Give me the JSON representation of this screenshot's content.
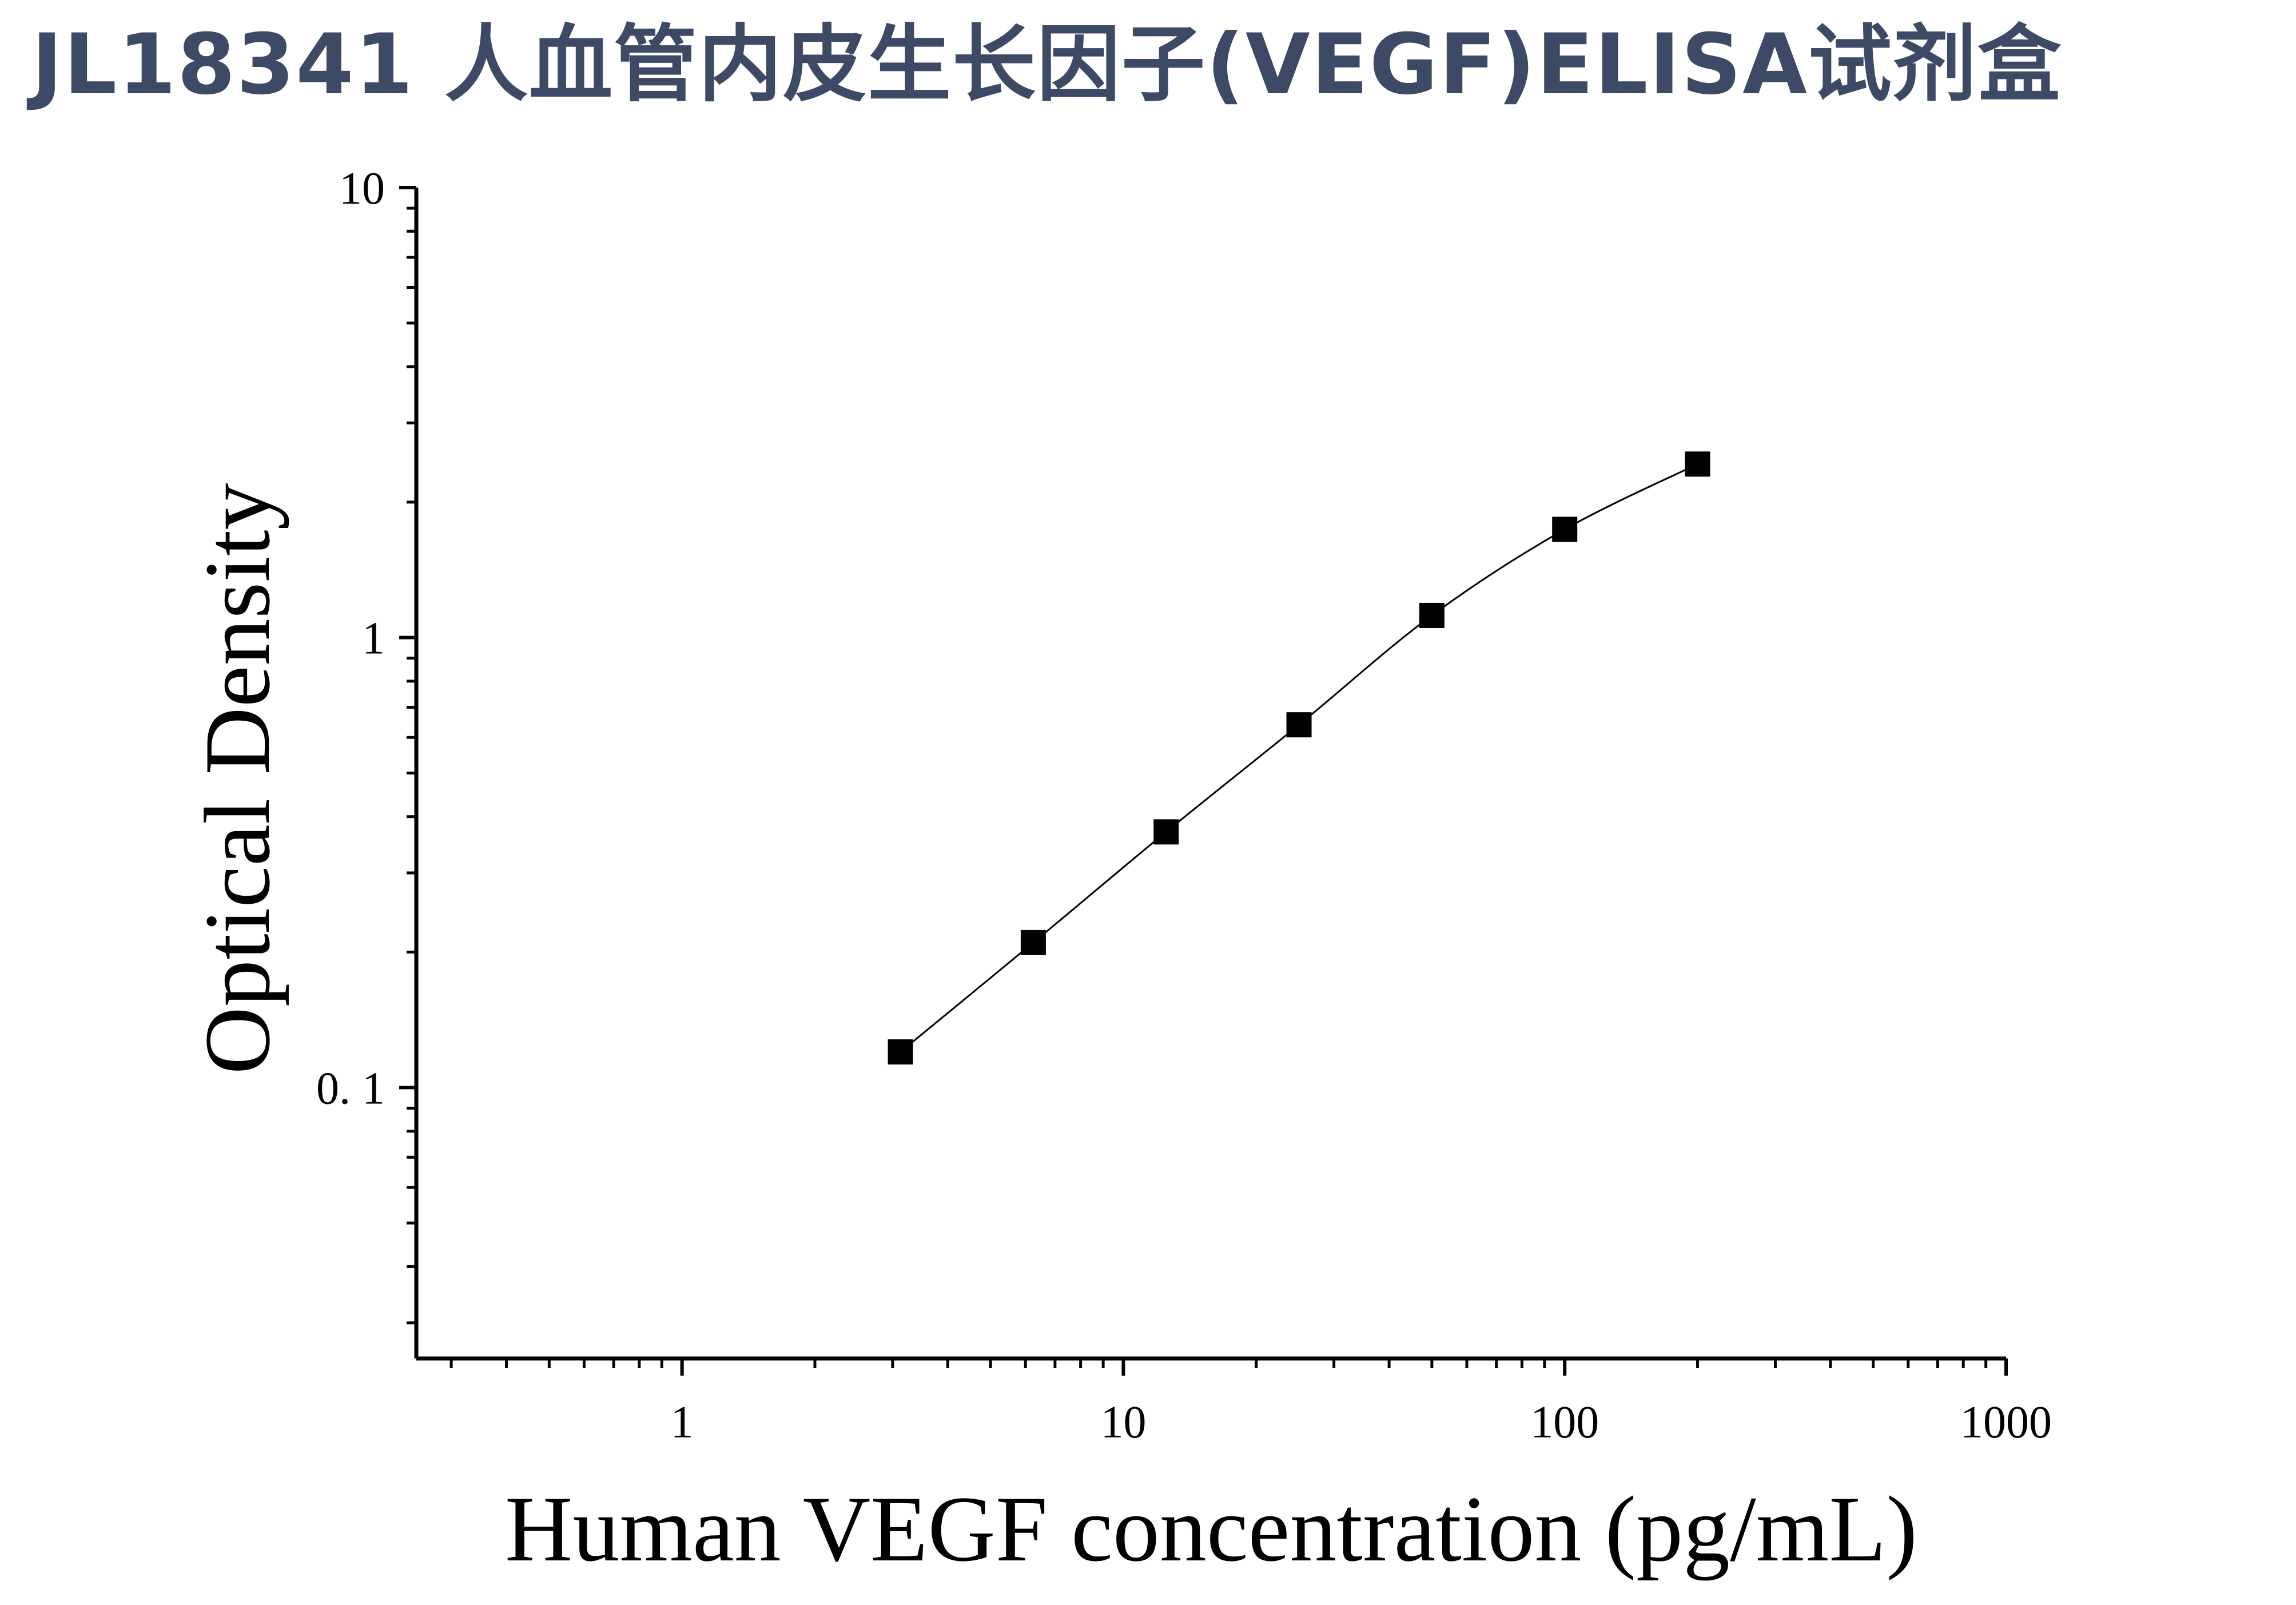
{
  "title": "JL18341 人血管内皮生长因子(VEGF)ELISA试剂盒",
  "colors": {
    "title": "#3d4a66",
    "axis": "#000000",
    "marker": "#000000"
  },
  "chart_data": {
    "type": "scatter",
    "xscale": "log",
    "yscale": "log",
    "xlabel": "Human VEGF concentration (pg/mL)",
    "ylabel": "Optical Density",
    "xlim": [
      0.25,
      1000
    ],
    "ylim": [
      0.025,
      10
    ],
    "xticks": [
      {
        "value": 1,
        "label": "1"
      },
      {
        "value": 10,
        "label": "10"
      },
      {
        "value": 100,
        "label": "100"
      },
      {
        "value": 1000,
        "label": "1000"
      }
    ],
    "yticks": [
      {
        "value": 0.1,
        "label": "0. 1"
      },
      {
        "value": 1,
        "label": "1"
      },
      {
        "value": 10,
        "label": "10"
      }
    ],
    "series": [
      {
        "marker": "square",
        "fit_line": true,
        "x": [
          3.125,
          6.25,
          12.5,
          25,
          50,
          100,
          200
        ],
        "y": [
          0.12,
          0.21,
          0.37,
          0.64,
          1.12,
          1.74,
          2.43
        ]
      }
    ]
  }
}
